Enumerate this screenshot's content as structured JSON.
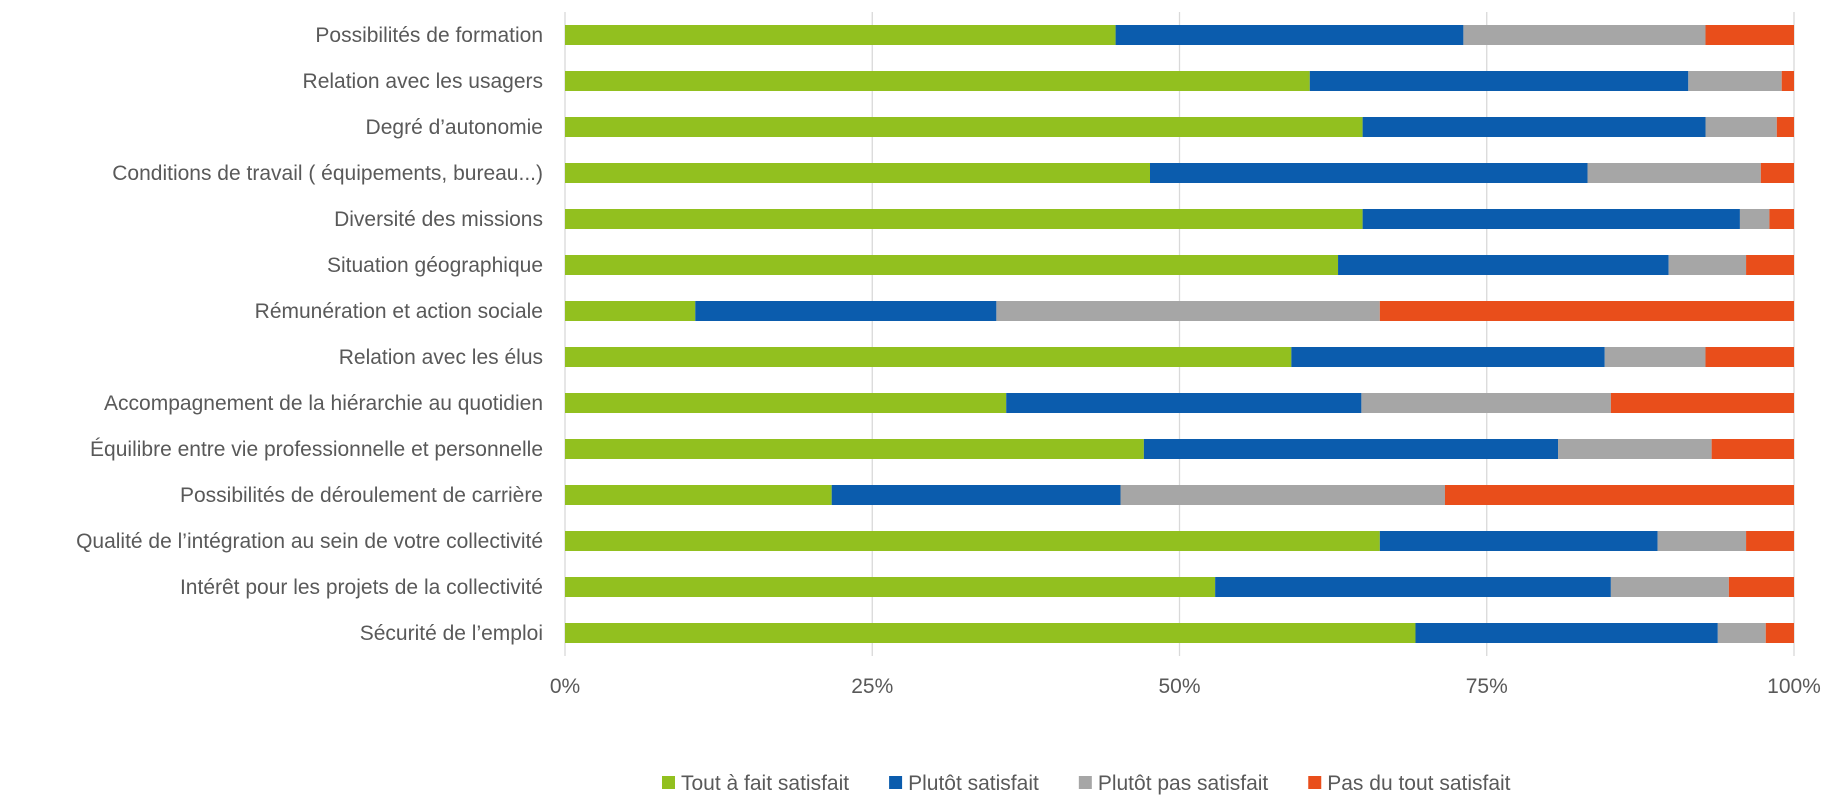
{
  "chart_data": {
    "type": "bar",
    "orientation": "horizontal",
    "stacked": "percent",
    "categories": [
      "Possibilités de formation",
      "Relation avec les usagers",
      "Degré d’autonomie",
      "Conditions de travail ( équipements, bureau...)",
      "Diversité des missions",
      "Situation géographique",
      "Rémunération et action sociale",
      "Relation avec les élus",
      "Accompagnement de la hiérarchie au quotidien",
      "Équilibre entre vie professionnelle et personnelle",
      "Possibilités de déroulement de carrière",
      "Qualité de l’intégration au sein de votre collectivité",
      "Intérêt pour les projets de la collectivité",
      "Sécurité de l’emploi"
    ],
    "series": [
      {
        "name": "Tout à fait satisfait",
        "color": "#92c01f",
        "values": [
          44.8,
          60.6,
          64.9,
          47.6,
          64.9,
          62.9,
          10.6,
          59.1,
          35.9,
          47.1,
          21.7,
          66.3,
          52.9,
          69.2
        ]
      },
      {
        "name": "Plutôt satisfait",
        "color": "#0b5cad",
        "values": [
          28.3,
          30.8,
          27.9,
          35.6,
          30.7,
          26.9,
          24.5,
          25.5,
          28.9,
          33.7,
          23.5,
          22.6,
          32.2,
          24.6
        ]
      },
      {
        "name": "Plutôt pas satisfait",
        "color": "#a6a6a6",
        "values": [
          19.7,
          7.6,
          5.8,
          14.1,
          2.4,
          6.3,
          31.2,
          8.2,
          20.3,
          12.5,
          26.4,
          7.2,
          9.6,
          3.9
        ]
      },
      {
        "name": "Pas du tout satisfait",
        "color": "#e94e1b",
        "values": [
          7.2,
          1.0,
          1.4,
          2.7,
          2.0,
          3.9,
          33.7,
          7.2,
          14.9,
          6.7,
          28.4,
          3.9,
          5.3,
          2.3
        ]
      }
    ],
    "xlim": [
      0,
      100
    ],
    "xticks": [
      0,
      25,
      50,
      75,
      100
    ],
    "xtick_labels": [
      "0%",
      "25%",
      "50%",
      "75%",
      "100%"
    ],
    "grid": "vertical",
    "legend": "bottom"
  }
}
